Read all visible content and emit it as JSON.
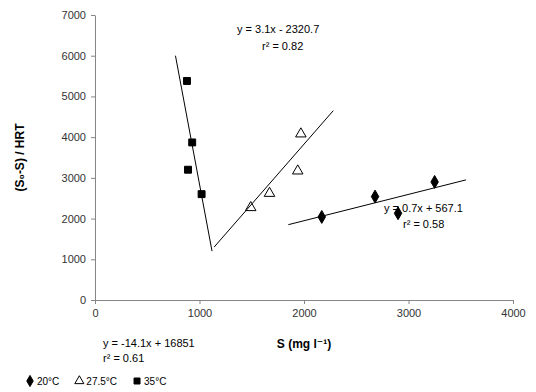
{
  "chart_data": {
    "type": "scatter",
    "x_label": "S (mg l⁻¹)",
    "y_label": "(S₀-S) / HRT",
    "xlim": [
      0,
      4000
    ],
    "xticks": [
      0,
      1000,
      2000,
      3000,
      4000
    ],
    "ylim": [
      0,
      7000
    ],
    "yticks": [
      0,
      1000,
      2000,
      3000,
      4000,
      5000,
      6000,
      7000
    ],
    "legend": "bottom-left",
    "series": [
      {
        "name": "20°C",
        "color": "#000000",
        "marker": "diamond",
        "x": [
          2170,
          2680,
          2900,
          3250
        ],
        "values": [
          2040,
          2540,
          2130,
          2900
        ]
      },
      {
        "name": "27.5°C",
        "color": "#000000",
        "marker": "triangle-open",
        "x": [
          1490,
          1670,
          1940,
          1970
        ],
        "values": [
          2270,
          2620,
          3170,
          4080
        ]
      },
      {
        "name": "35°C",
        "color": "#000000",
        "marker": "square",
        "x": [
          880,
          930,
          890,
          1020
        ],
        "values": [
          5380,
          3870,
          3200,
          2600
        ]
      },
      {
        "type": "line",
        "color": "#000000",
        "line_style": "solid",
        "x": [
          1850,
          3550
        ],
        "values": [
          1850,
          2950
        ],
        "annotation": [
          "y = 0.7x + 567.1",
          "r² = 0.58"
        ]
      },
      {
        "type": "line",
        "color": "#000000",
        "line_style": "solid",
        "x": [
          1140,
          2280
        ],
        "values": [
          1300,
          4650
        ],
        "annotation": [
          "y = 3.1x - 2320.7",
          "r² = 0.82"
        ]
      },
      {
        "type": "line",
        "color": "#000000",
        "line_style": "solid",
        "x": [
          770,
          1120
        ],
        "values": [
          6000,
          1200
        ],
        "annotation": [
          "y = -14.1x + 16851",
          "r² = 0.61"
        ]
      }
    ]
  }
}
